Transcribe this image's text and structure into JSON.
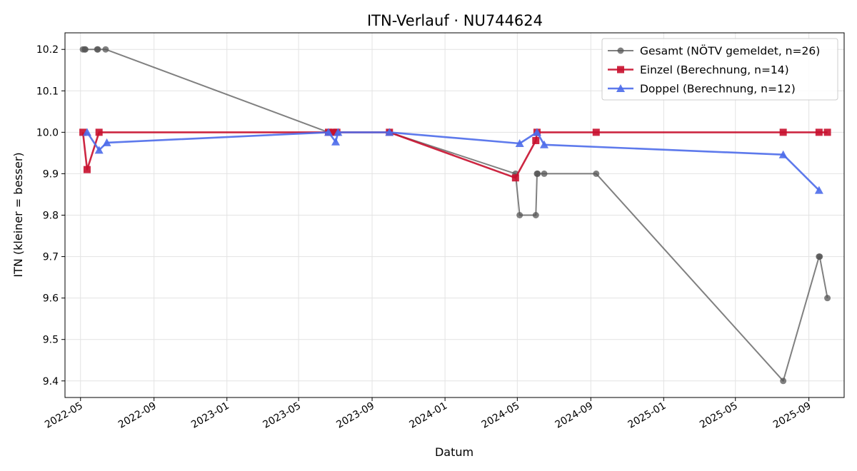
{
  "chart_data": {
    "type": "line",
    "title": "ITN-Verlauf · NU744624",
    "xlabel": "Datum",
    "ylabel": "ITN  (kleiner = besser)",
    "x_ticks": [
      "2022-05",
      "2022-09",
      "2023-01",
      "2023-05",
      "2023-09",
      "2024-01",
      "2024-05",
      "2024-09",
      "2025-01",
      "2025-05",
      "2025-09"
    ],
    "y_ticks": [
      "9.4",
      "9.5",
      "9.6",
      "9.7",
      "9.8",
      "9.9",
      "10.0",
      "10.1",
      "10.2"
    ],
    "xlim": [
      "2022-04-05",
      "2025-10-30"
    ],
    "ylim": [
      9.36,
      10.24
    ],
    "grid": true,
    "legend_position": "top-right",
    "series": [
      {
        "name": "Gesamt (NÖTV gemeldet, n=26)",
        "color": "#555555",
        "marker": "circle",
        "x": [
          "2022-05-05",
          "2022-05-08",
          "2022-05-09",
          "2022-05-29",
          "2022-05-30",
          "2022-06-12",
          "2023-06-20",
          "2023-06-24",
          "2023-06-27",
          "2023-07-02",
          "2023-07-04",
          "2023-09-30",
          "2024-04-28",
          "2024-05-05",
          "2024-06-01",
          "2024-06-03",
          "2024-06-04",
          "2024-06-15",
          "2024-09-10",
          "2025-07-20",
          "2025-09-18",
          "2025-09-19",
          "2025-10-02"
        ],
        "y": [
          10.2,
          10.2,
          10.2,
          10.2,
          10.2,
          10.2,
          10.0,
          10.0,
          10.0,
          10.0,
          10.0,
          10.0,
          9.9,
          9.8,
          9.8,
          9.9,
          9.9,
          9.9,
          9.9,
          9.4,
          9.7,
          9.7,
          9.6
        ]
      },
      {
        "name": "Einzel (Berechnung, n=14)",
        "color": "#c8102e",
        "marker": "square",
        "x": [
          "2022-05-05",
          "2022-05-12",
          "2022-06-01",
          "2023-06-20",
          "2023-06-28",
          "2023-07-04",
          "2023-09-30",
          "2024-04-28",
          "2024-06-01",
          "2024-06-03",
          "2024-09-10",
          "2025-07-20",
          "2025-09-18",
          "2025-10-02"
        ],
        "y": [
          10.0,
          9.91,
          10.0,
          10.0,
          10.0,
          10.0,
          10.0,
          9.89,
          9.98,
          10.0,
          10.0,
          10.0,
          10.0,
          10.0
        ]
      },
      {
        "name": "Doppel (Berechnung, n=12)",
        "color": "#4d6bea",
        "marker": "triangle",
        "x": [
          "2022-05-12",
          "2022-06-01",
          "2022-06-14",
          "2023-06-20",
          "2023-07-02",
          "2023-07-06",
          "2023-09-30",
          "2024-05-05",
          "2024-06-03",
          "2024-06-15",
          "2025-07-20",
          "2025-09-18"
        ],
        "y": [
          10.0,
          9.957,
          9.975,
          10.0,
          9.977,
          10.0,
          10.0,
          9.973,
          10.0,
          9.97,
          9.946,
          9.86
        ]
      }
    ]
  }
}
